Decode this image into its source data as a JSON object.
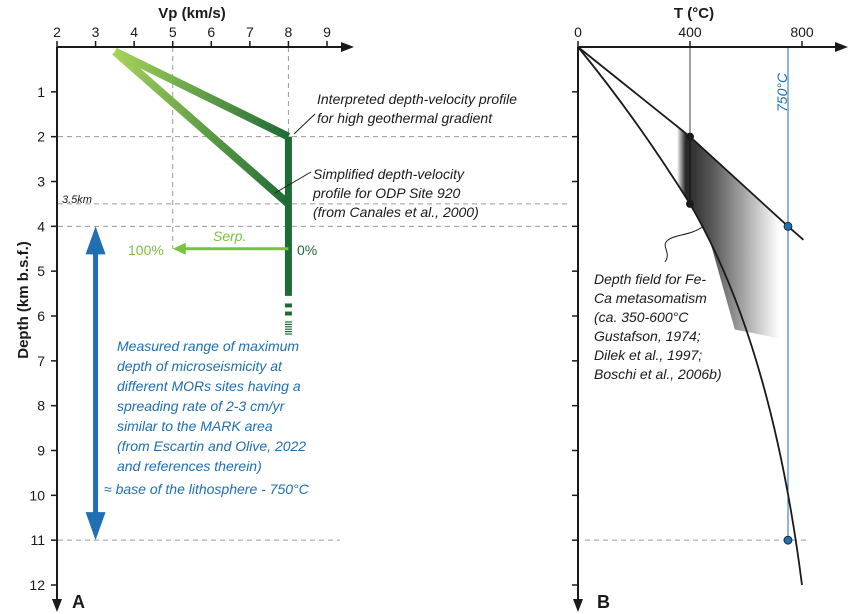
{
  "chart_data": [
    {
      "panel": "A",
      "type": "line",
      "xlabel": "Vp (km/s)",
      "ylabel": "Depth (km b.s.f.)",
      "xlim": [
        2,
        9
      ],
      "ylim": [
        0,
        12
      ],
      "x_ticks": [
        "2",
        "3",
        "4",
        "5",
        "6",
        "7",
        "8",
        "9"
      ],
      "y_ticks": [
        "1",
        "2",
        "3",
        "4",
        "5",
        "6",
        "7",
        "8",
        "9",
        "10",
        "11",
        "12"
      ],
      "series": [
        {
          "x": [
            3.5,
            8,
            8,
            8
          ],
          "y": [
            0.1,
            2,
            3.5,
            6.3
          ]
        },
        {
          "x": [
            3.5,
            8
          ],
          "y": [
            0.1,
            3.5
          ]
        }
      ],
      "depth_guides": [
        2,
        3.5,
        4,
        11
      ],
      "annotations": {
        "high_gradient": [
          "Interpreted depth-velocity profile",
          "for high geothermal gradient"
        ],
        "odp": [
          "Simplified depth-velocity",
          "profile for ODP Site 920",
          "(from Canales et al., 2000)"
        ],
        "depth_label": "3.5km",
        "serp": "Serp.",
        "pct_100": "100%",
        "pct_0": "0%",
        "microseismicity": [
          "Measured range of maximum",
          "depth of microseismicity at",
          "different MORs sites having a",
          "spreading rate of 2-3 cm/yr",
          "similar to the MARK area",
          "(from Escartin and Olive, 2022",
          "and references therein)",
          "≈ base of the lithosphere - 750°C"
        ]
      },
      "serp_arrow": {
        "x": [
          8,
          5
        ],
        "y": 4.5
      },
      "blue_range": {
        "y": [
          4,
          11
        ],
        "x": 3
      },
      "colors": {
        "light_green": "#7cc242",
        "dark_green": "#1f6b35",
        "blue": "#1f6fb2"
      }
    },
    {
      "panel": "B",
      "type": "line",
      "xlabel": "T (°C)",
      "xlim": [
        0,
        900
      ],
      "ylim": [
        0,
        12
      ],
      "x_ticks": [
        "0",
        "400",
        "800"
      ],
      "series": [
        {
          "x": [
            0,
            400,
            750,
            805
          ],
          "y": [
            0,
            2,
            4,
            4.3
          ]
        },
        {
          "x": [
            0,
            400,
            750,
            800
          ],
          "y": [
            0,
            3.5,
            11,
            12
          ]
        }
      ],
      "vertical_lines": [
        400,
        750
      ],
      "iso_label": "750°C",
      "metasomatism": [
        "Depth field for Fe-",
        "Ca metasomatism",
        "(ca. 350-600°C",
        "Gustafson, 1974;",
        "Dilek et al., 1997;",
        "Boschi et al., 2006b)"
      ],
      "points": [
        {
          "x": 400,
          "y": 2,
          "color": "#1a1a1a"
        },
        {
          "x": 400,
          "y": 3.5,
          "color": "#1a1a1a"
        },
        {
          "x": 750,
          "y": 4,
          "color": "#1f6fb2"
        },
        {
          "x": 750,
          "y": 11,
          "color": "#1f6fb2"
        }
      ]
    }
  ]
}
